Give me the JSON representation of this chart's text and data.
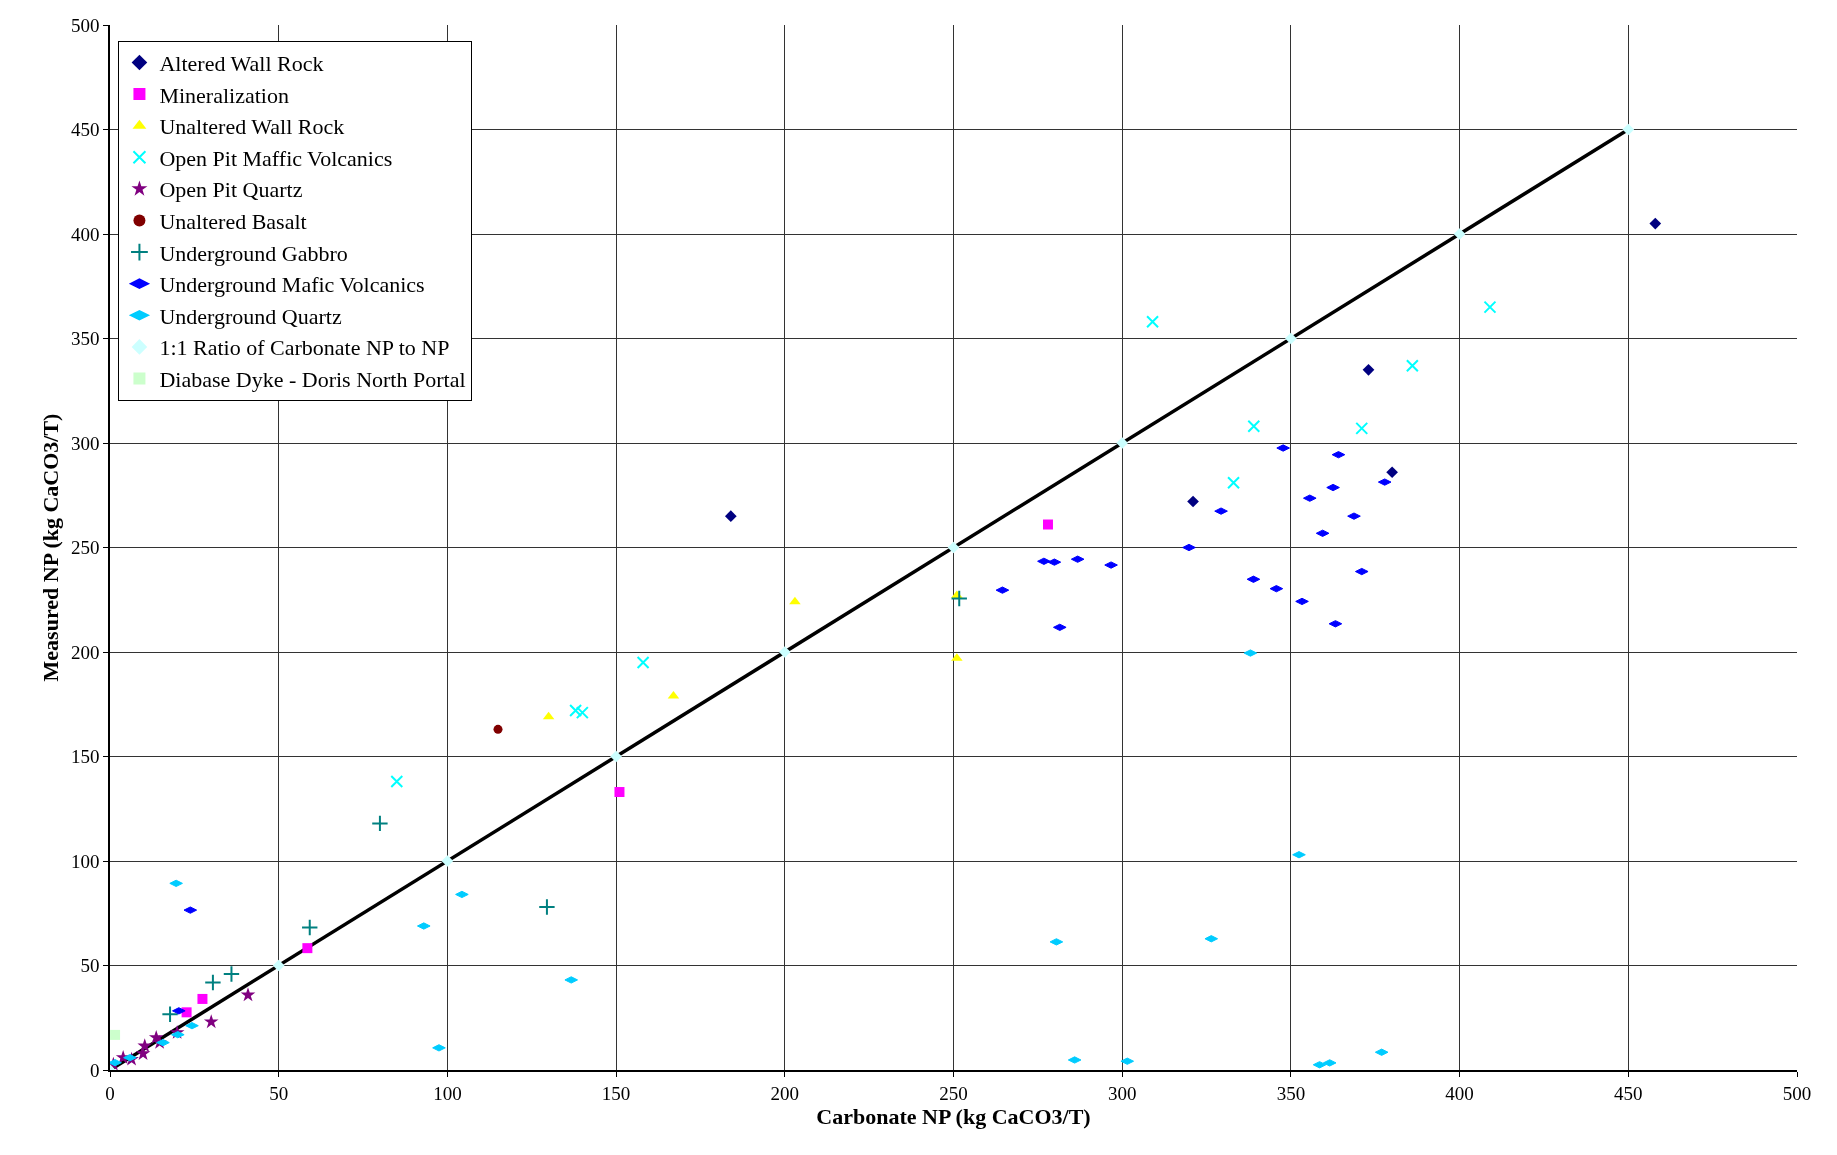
{
  "chart_data": {
    "type": "scatter",
    "xlabel": "Carbonate NP (kg CaCO3/T)",
    "ylabel": "Measured NP (kg CaCO3/T)",
    "xlim": [
      0,
      500
    ],
    "ylim": [
      0,
      500
    ],
    "xticks": [
      0,
      50,
      100,
      150,
      200,
      250,
      300,
      350,
      400,
      450,
      500
    ],
    "yticks": [
      0,
      50,
      100,
      150,
      200,
      250,
      300,
      350,
      400,
      450,
      500
    ],
    "grid": true,
    "legend": "top left",
    "series": [
      {
        "name": "Altered Wall Rock",
        "color": "#000080",
        "marker": "diamond",
        "x": [
          184,
          321,
          373,
          380,
          458
        ],
        "values": [
          265,
          272,
          335,
          286,
          405
        ]
      },
      {
        "name": "Mineralization",
        "color": "#ff00ff",
        "marker": "square",
        "x": [
          22.7,
          27.4,
          58.5,
          151,
          278
        ],
        "values": [
          27.6,
          34,
          58.3,
          133,
          261
        ]
      },
      {
        "name": "Unaltered Wall Rock",
        "color": "#ffff00",
        "marker": "triangle",
        "x": [
          130,
          167,
          203,
          251,
          251
        ],
        "values": [
          169,
          179,
          224,
          197,
          227
        ]
      },
      {
        "name": "Open Pit Maffic Volcanics",
        "color": "#00ffff",
        "marker": "x",
        "x": [
          85,
          138,
          140,
          158,
          309,
          333,
          339,
          371,
          386,
          409
        ],
        "values": [
          138,
          172,
          171,
          195,
          358,
          281,
          308,
          307,
          337,
          365
        ]
      },
      {
        "name": "Open Pit Quartz",
        "color": "#800080",
        "marker": "star",
        "x": [
          1.0,
          3.9,
          6.4,
          9.8,
          10.3,
          13.7,
          14.7,
          19.9,
          30.0,
          40.9
        ],
        "values": [
          2.7,
          5.9,
          5.1,
          7.8,
          11.5,
          15.5,
          13.1,
          17.9,
          23.0,
          35.9
        ]
      },
      {
        "name": "Unaltered Basalt",
        "color": "#800000",
        "marker": "circle",
        "x": [
          115
        ],
        "values": [
          163
        ]
      },
      {
        "name": "Underground Gabbro",
        "color": "#008080",
        "marker": "cross",
        "x": [
          17.8,
          30.5,
          36.0,
          59.2,
          80,
          129.5,
          251.7
        ],
        "values": [
          26.7,
          41.9,
          45.9,
          68.2,
          118,
          78,
          225.6
        ]
      },
      {
        "name": "Underground Mafic Volcanics",
        "color": "#0000ff",
        "x": [
          20.4,
          23.8,
          264.5,
          276.8,
          279.9,
          281.5,
          286.8,
          296.7,
          319.8,
          329.3,
          338.9,
          345.7,
          347.7,
          353.3,
          355.6,
          359.4,
          362.5,
          363.2,
          364.1,
          368.7,
          371.0,
          377.8
        ],
        "values": [
          28.3,
          76.5,
          229.6,
          243.4,
          243.0,
          211.8,
          244.4,
          241.6,
          250.0,
          267.4,
          234.8,
          230.3,
          297.6,
          224.2,
          273.6,
          256.8,
          278.7,
          213.5,
          294.4,
          265.0,
          238.5,
          281.3
        ]
      },
      {
        "name": "Underground Quartz",
        "color": "#00ccff",
        "x": [
          1.5,
          5.9,
          15.7,
          19.6,
          20.1,
          24.3,
          93,
          97.5,
          104.3,
          136.7,
          280.5,
          285.9,
          301.5,
          326.4,
          338.0,
          352.4,
          358.5,
          361.5,
          376.9
        ],
        "values": [
          3.5,
          5.9,
          13.1,
          89.3,
          16.9,
          21.2,
          68.9,
          10.6,
          84,
          43.1,
          61.3,
          4.8,
          4.2,
          62.8,
          199.5,
          103.0,
          2.5,
          3.4,
          8.5
        ]
      },
      {
        "name": "1:1 Ratio of Carbonate NP to NP",
        "color": "#ccffff",
        "marker": "diamond",
        "x": [
          0,
          50,
          100,
          150,
          200,
          250,
          300,
          350,
          400,
          450
        ],
        "values": [
          0,
          50,
          100,
          150,
          200,
          250,
          300,
          350,
          400,
          450
        ]
      },
      {
        "name": "Diabase Dyke - Doris North Portal",
        "color": "#ccffcc",
        "marker": "square",
        "x": [
          1.5
        ],
        "values": [
          16.8
        ]
      },
      {
        "type": "line",
        "color": "#000000",
        "marker": "none",
        "line_style": "solid",
        "x": [
          0,
          450
        ],
        "values": [
          0,
          450
        ]
      }
    ]
  }
}
